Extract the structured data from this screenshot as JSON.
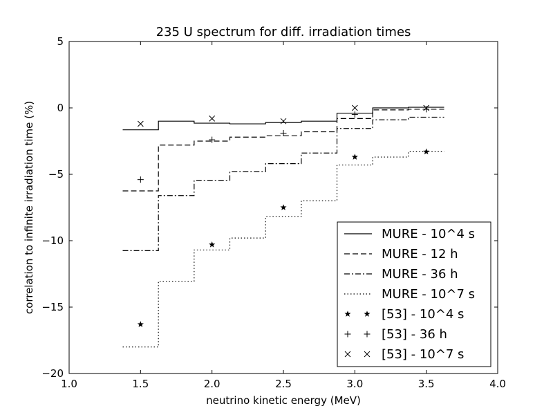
{
  "chart_data": {
    "type": "line",
    "title": "235 U spectrum for diff. irradiation times",
    "xlabel": "neutrino kinetic energy (MeV)",
    "ylabel": "correlation to infinite irradiation time (%)",
    "xlim": [
      1.0,
      4.0
    ],
    "ylim": [
      -20,
      5
    ],
    "xticks": [
      1.0,
      1.5,
      2.0,
      2.5,
      3.0,
      3.5,
      4.0
    ],
    "xtick_labels": [
      "1.0",
      "1.5",
      "2.0",
      "2.5",
      "3.0",
      "3.5",
      "4.0"
    ],
    "yticks": [
      -20,
      -15,
      -10,
      -5,
      0,
      5
    ],
    "ytick_labels": [
      "−20",
      "−15",
      "−10",
      "−5",
      "0",
      "5"
    ],
    "grid": false,
    "legend_position": "lower-right",
    "step_edges": [
      1.375,
      1.625,
      1.875,
      2.125,
      2.375,
      2.625,
      2.875,
      3.125,
      3.375,
      3.625
    ],
    "series": [
      {
        "name": "MURE - 10^4 s",
        "kind": "step",
        "style": "solid",
        "values": [
          -1.65,
          -1.0,
          -1.15,
          -1.2,
          -1.1,
          -1.0,
          -0.4,
          0.0,
          0.05
        ]
      },
      {
        "name": "MURE - 12 h",
        "kind": "step",
        "style": "dashed",
        "values": [
          -6.25,
          -2.8,
          -2.5,
          -2.2,
          -2.1,
          -1.8,
          -0.8,
          -0.15,
          -0.1
        ]
      },
      {
        "name": "MURE - 36 h",
        "kind": "step",
        "style": "dashdot",
        "values": [
          -10.75,
          -6.6,
          -5.45,
          -4.8,
          -4.2,
          -3.4,
          -1.55,
          -0.9,
          -0.7
        ]
      },
      {
        "name": "MURE - 10^7 s",
        "kind": "step",
        "style": "dotted",
        "values": [
          -18.0,
          -13.05,
          -10.7,
          -9.8,
          -8.2,
          -7.0,
          -4.3,
          -3.7,
          -3.3
        ]
      },
      {
        "name": "[53] - 10^4 s",
        "kind": "scatter",
        "marker": "star",
        "x": [
          1.5,
          2.0,
          2.5,
          3.0,
          3.5
        ],
        "y": [
          -16.3,
          -10.3,
          -7.5,
          -3.7,
          -3.3
        ]
      },
      {
        "name": "[53] - 36 h",
        "kind": "scatter",
        "marker": "plus",
        "x": [
          1.5,
          2.0,
          2.5,
          3.0,
          3.5
        ],
        "y": [
          -5.4,
          -2.4,
          -1.9,
          -0.5,
          -0.1
        ]
      },
      {
        "name": "[53] - 10^7 s",
        "kind": "scatter",
        "marker": "x",
        "x": [
          1.5,
          2.0,
          2.5,
          3.0,
          3.5
        ],
        "y": [
          -1.2,
          -0.8,
          -1.0,
          0.0,
          0.0
        ]
      }
    ]
  }
}
